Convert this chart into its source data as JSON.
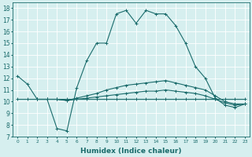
{
  "title": "",
  "xlabel": "Humidex (Indice chaleur)",
  "ylabel": "",
  "background_color": "#d6efef",
  "line_color": "#1a6b6b",
  "grid_color": "#ffffff",
  "xlim": [
    -0.5,
    23.5
  ],
  "ylim": [
    7,
    18.5
  ],
  "yticks": [
    7,
    8,
    9,
    10,
    11,
    12,
    13,
    14,
    15,
    16,
    17,
    18
  ],
  "xticks": [
    0,
    1,
    2,
    3,
    4,
    5,
    6,
    7,
    8,
    9,
    10,
    11,
    12,
    13,
    14,
    15,
    16,
    17,
    18,
    19,
    20,
    21,
    22,
    23
  ],
  "series": [
    {
      "x": [
        0,
        1,
        2,
        3,
        4,
        5,
        6,
        7,
        8,
        9,
        10,
        11,
        12,
        13,
        14,
        15,
        16,
        17,
        18,
        19,
        20,
        21,
        22,
        23
      ],
      "y": [
        12.2,
        11.5,
        10.2,
        10.2,
        7.7,
        7.5,
        11.2,
        13.5,
        15.0,
        15.0,
        17.5,
        17.8,
        16.7,
        17.8,
        17.5,
        17.5,
        16.5,
        15.0,
        13.0,
        12.0,
        10.3,
        9.7,
        9.5,
        9.8
      ]
    },
    {
      "x": [
        0,
        1,
        2,
        3,
        4,
        5,
        6,
        7,
        8,
        9,
        10,
        11,
        12,
        13,
        14,
        15,
        16,
        17,
        18,
        19,
        20,
        21,
        22,
        23
      ],
      "y": [
        10.2,
        10.2,
        10.2,
        10.2,
        10.2,
        10.2,
        10.2,
        10.2,
        10.2,
        10.2,
        10.2,
        10.2,
        10.2,
        10.2,
        10.2,
        10.2,
        10.2,
        10.2,
        10.2,
        10.2,
        10.2,
        10.2,
        10.2,
        10.2
      ]
    },
    {
      "x": [
        2,
        3,
        4,
        5,
        6,
        7,
        8,
        9,
        10,
        11,
        12,
        13,
        14,
        15,
        16,
        17,
        18,
        19,
        20,
        21,
        22,
        23
      ],
      "y": [
        10.2,
        10.2,
        10.2,
        10.1,
        10.3,
        10.5,
        10.7,
        11.0,
        11.2,
        11.4,
        11.5,
        11.6,
        11.7,
        11.8,
        11.6,
        11.4,
        11.2,
        11.0,
        10.5,
        10.0,
        9.8,
        9.8
      ]
    },
    {
      "x": [
        2,
        3,
        4,
        5,
        6,
        7,
        8,
        9,
        10,
        11,
        12,
        13,
        14,
        15,
        16,
        17,
        18,
        19,
        20,
        21,
        22,
        23
      ],
      "y": [
        10.2,
        10.2,
        10.2,
        10.1,
        10.2,
        10.3,
        10.4,
        10.5,
        10.6,
        10.7,
        10.8,
        10.9,
        10.9,
        11.0,
        10.9,
        10.8,
        10.7,
        10.5,
        10.2,
        9.9,
        9.7,
        9.8
      ]
    }
  ],
  "xlabel_fontsize": 6.5,
  "xlabel_fontweight": "bold",
  "xtick_fontsize": 4.2,
  "ytick_fontsize": 5.5,
  "linewidth": 0.8,
  "markersize": 2.5
}
